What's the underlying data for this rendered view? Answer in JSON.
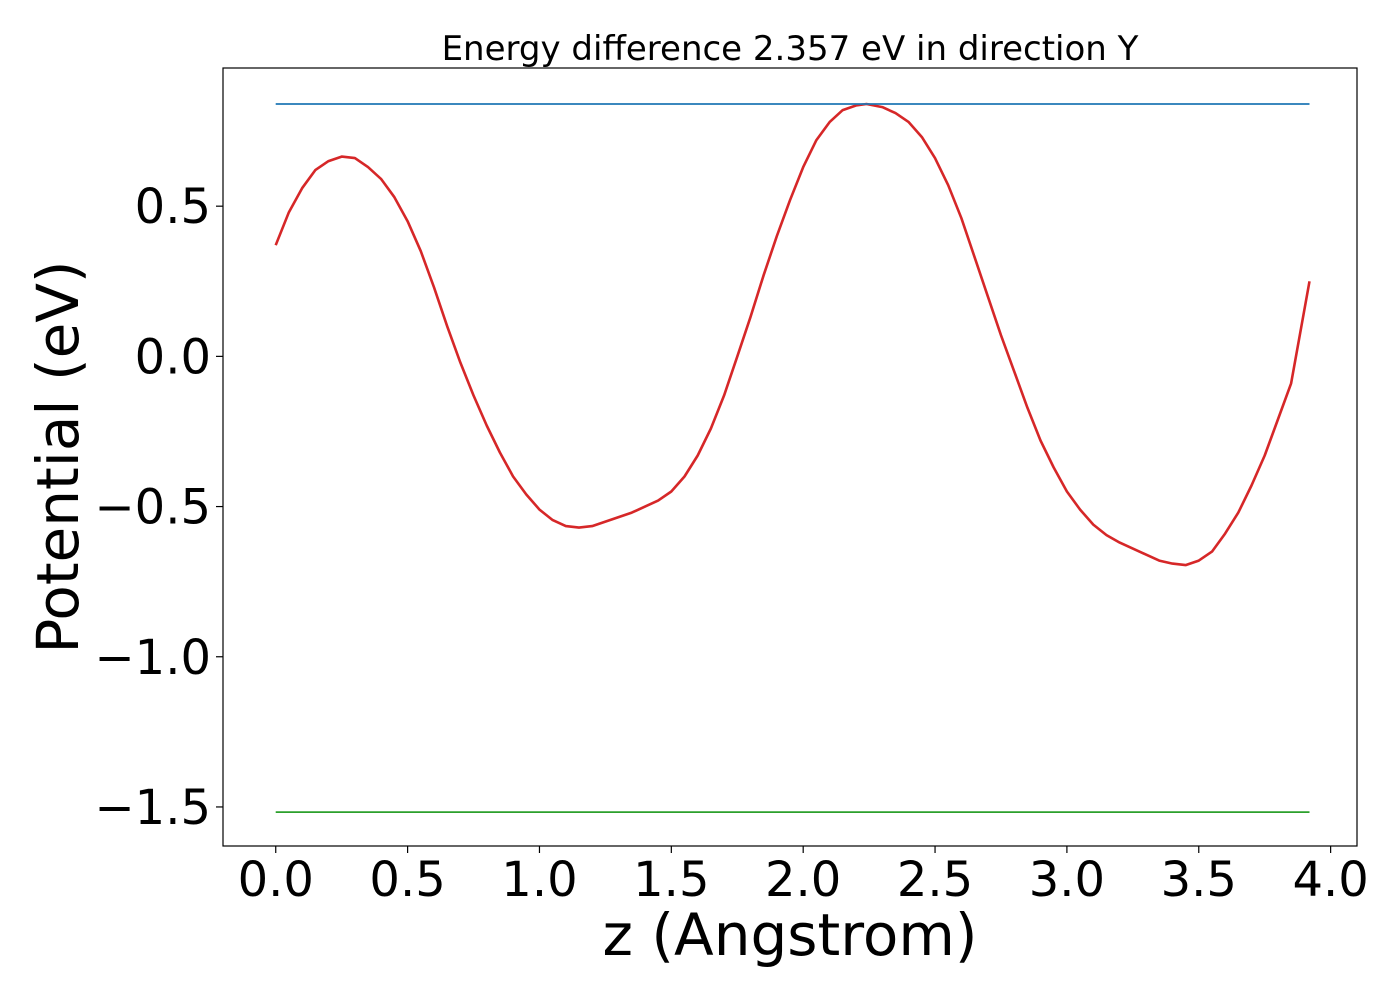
{
  "chart_data": {
    "type": "line",
    "title": "Energy difference 2.357 eV in direction Y",
    "xlabel": "z (Angstrom)",
    "ylabel": "Potential (eV)",
    "xlim": [
      -0.2,
      4.1
    ],
    "ylim": [
      -1.63,
      0.96
    ],
    "xticks": [
      0.0,
      0.5,
      1.0,
      1.5,
      2.0,
      2.5,
      3.0,
      3.5,
      4.0
    ],
    "xtick_labels": [
      "0.0",
      "0.5",
      "1.0",
      "1.5",
      "2.0",
      "2.5",
      "3.0",
      "3.5",
      "4.0"
    ],
    "yticks": [
      0.5,
      0.0,
      -0.5,
      -1.0,
      -1.5
    ],
    "ytick_labels": [
      "0.5",
      "0.0",
      "−0.5",
      "−1.0",
      "−1.5"
    ],
    "grid": false,
    "legend": "none",
    "series": [
      {
        "color": "#d62728",
        "x": [
          0.0,
          0.05,
          0.1,
          0.15,
          0.2,
          0.25,
          0.3,
          0.35,
          0.4,
          0.45,
          0.5,
          0.55,
          0.6,
          0.65,
          0.7,
          0.75,
          0.8,
          0.85,
          0.9,
          0.95,
          1.0,
          1.05,
          1.1,
          1.15,
          1.2,
          1.25,
          1.3,
          1.35,
          1.4,
          1.45,
          1.5,
          1.55,
          1.6,
          1.65,
          1.7,
          1.75,
          1.8,
          1.85,
          1.9,
          1.95,
          2.0,
          2.05,
          2.1,
          2.15,
          2.2,
          2.24,
          2.3,
          2.35,
          2.4,
          2.45,
          2.5,
          2.55,
          2.6,
          2.65,
          2.7,
          2.75,
          2.8,
          2.85,
          2.9,
          2.95,
          3.0,
          3.05,
          3.1,
          3.15,
          3.2,
          3.25,
          3.3,
          3.35,
          3.4,
          3.45,
          3.5,
          3.55,
          3.6,
          3.65,
          3.7,
          3.75,
          3.8,
          3.85,
          3.92
        ],
        "y": [
          0.37,
          0.48,
          0.56,
          0.62,
          0.65,
          0.665,
          0.66,
          0.63,
          0.59,
          0.53,
          0.45,
          0.35,
          0.23,
          0.1,
          -0.02,
          -0.13,
          -0.23,
          -0.32,
          -0.4,
          -0.46,
          -0.51,
          -0.545,
          -0.565,
          -0.57,
          -0.565,
          -0.55,
          -0.535,
          -0.52,
          -0.5,
          -0.48,
          -0.45,
          -0.4,
          -0.33,
          -0.24,
          -0.13,
          0.0,
          0.13,
          0.27,
          0.4,
          0.52,
          0.63,
          0.72,
          0.78,
          0.82,
          0.835,
          0.84,
          0.83,
          0.81,
          0.78,
          0.73,
          0.66,
          0.57,
          0.46,
          0.33,
          0.2,
          0.07,
          -0.05,
          -0.17,
          -0.28,
          -0.37,
          -0.45,
          -0.51,
          -0.56,
          -0.595,
          -0.62,
          -0.64,
          -0.66,
          -0.68,
          -0.69,
          -0.695,
          -0.68,
          -0.65,
          -0.59,
          -0.52,
          -0.43,
          -0.33,
          -0.21,
          -0.09,
          0.25
        ]
      },
      {
        "color": "#1f77b4",
        "x": [
          0.0,
          3.92
        ],
        "y": [
          0.84,
          0.84
        ]
      },
      {
        "color": "#2ca02c",
        "x": [
          0.0,
          3.92
        ],
        "y": [
          -1.517,
          -1.517
        ]
      }
    ]
  }
}
